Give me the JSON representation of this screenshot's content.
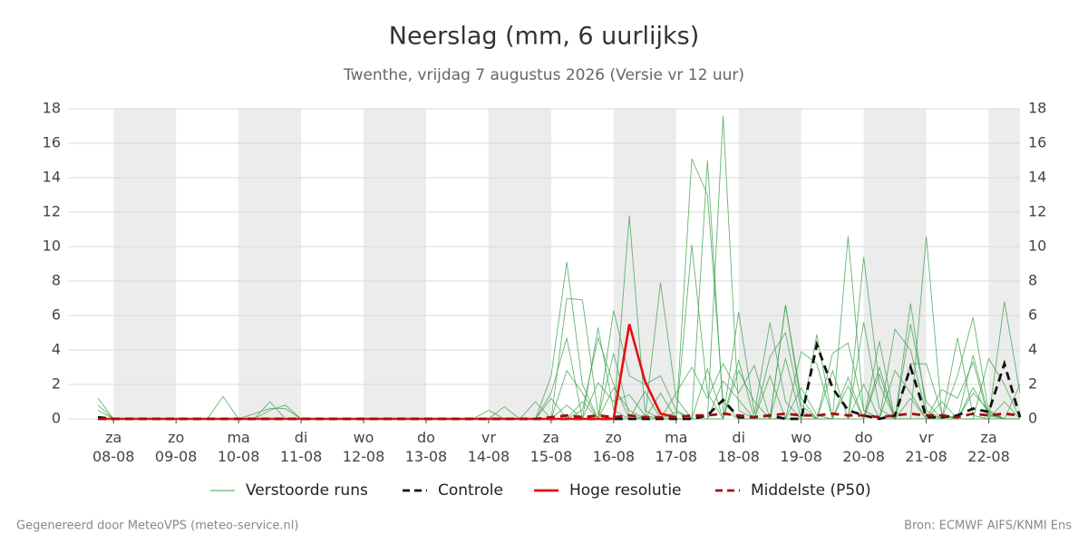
{
  "chart_data": {
    "type": "line",
    "title": "Neerslag (mm, 6 uurlijks)",
    "subtitle": "Twenthe, vrijdag  7 augustus 2026 (Versie vr 12 uur)",
    "footer_left": "Gegenereerd door MeteoVPS (meteo-service.nl)",
    "footer_right": "Bron: ECMWF AIFS/KNMI Ens",
    "categories": [
      null,
      "za 08-08",
      null,
      null,
      null,
      "zo 09-08",
      null,
      null,
      null,
      "ma 10-08",
      null,
      null,
      null,
      "di 11-08",
      null,
      null,
      null,
      "wo 12-08",
      null,
      null,
      null,
      "do 13-08",
      null,
      null,
      null,
      "vr 14-08",
      null,
      null,
      null,
      "za 15-08",
      null,
      null,
      null,
      "zo 16-08",
      null,
      null,
      null,
      "ma 17-08",
      null,
      null,
      null,
      "di 18-08",
      null,
      null,
      null,
      "wo 19-08",
      null,
      null,
      null,
      "do 20-08",
      null,
      null,
      null,
      "vr 21-08",
      null,
      null,
      null,
      "za 22-08",
      null,
      null
    ],
    "ylim": [
      0,
      18
    ],
    "yticks": [
      0,
      2,
      4,
      6,
      8,
      10,
      12,
      14,
      16,
      18
    ],
    "grid": true,
    "ensemble": {
      "name": "Verstoorde runs",
      "color": "#3fa34d",
      "members": [
        [
          1.2,
          0,
          0,
          0,
          0,
          0,
          0,
          0,
          1.3,
          0,
          0,
          0,
          0,
          0,
          0,
          0,
          0,
          0,
          0,
          0,
          0,
          0,
          0,
          0,
          0,
          0,
          0,
          0,
          0,
          2.5,
          9.1,
          2.0,
          0,
          0,
          11.8,
          0.5,
          0,
          0,
          15.1,
          13.0,
          1.0,
          0,
          0,
          0,
          0,
          0,
          4.9,
          0,
          10.6,
          0.5,
          0,
          0,
          0,
          10.6,
          0.2,
          0,
          0,
          0,
          6.8,
          1.5
        ],
        [
          0.8,
          0,
          0,
          0,
          0,
          0,
          0,
          0,
          0,
          0,
          0,
          1.0,
          0,
          0,
          0,
          0,
          0,
          0,
          0,
          0,
          0,
          0,
          0,
          0,
          0,
          0,
          0,
          0,
          0,
          0,
          7.0,
          6.9,
          0.3,
          0,
          0,
          0,
          7.9,
          1.2,
          0,
          0,
          17.6,
          0.5,
          0,
          0,
          6.6,
          0.8,
          0,
          0,
          0,
          9.4,
          2.0,
          0,
          0,
          0,
          0,
          2.5,
          5.9,
          0.4,
          0,
          2.0
        ],
        [
          0.5,
          0,
          0,
          0,
          0,
          0,
          0,
          0,
          0,
          0,
          0,
          0.5,
          0.8,
          0,
          0,
          0,
          0,
          0,
          0,
          0,
          0,
          0,
          0,
          0,
          0,
          0,
          0,
          0,
          0,
          1.5,
          4.7,
          0,
          5.3,
          0.5,
          0,
          0,
          0,
          0,
          10.1,
          1.5,
          0,
          6.2,
          0.3,
          5.6,
          1.0,
          0,
          0,
          3.8,
          4.4,
          0.5,
          0,
          5.2,
          4.0,
          0.3,
          0,
          0,
          3.7,
          0.2,
          0,
          0
        ],
        [
          0,
          0,
          0,
          0,
          0,
          0,
          0,
          0,
          0,
          0,
          0,
          0,
          0,
          0,
          0,
          0,
          0,
          0,
          0,
          0,
          0,
          0,
          0,
          0,
          0,
          0,
          0,
          0,
          0,
          0,
          0,
          0,
          0,
          6.3,
          2.5,
          2.0,
          2.5,
          0.5,
          0,
          15.0,
          0.5,
          0,
          0,
          3.6,
          5.0,
          0.5,
          0,
          0,
          0,
          5.6,
          0.6,
          0,
          5.5,
          1.0,
          0,
          4.7,
          0.2,
          0,
          0,
          0
        ],
        [
          0,
          0,
          0,
          0,
          0,
          0,
          0,
          0,
          0,
          0,
          0,
          0,
          0,
          0,
          0,
          0,
          0,
          0,
          0,
          0,
          0,
          0,
          0,
          0,
          0,
          0,
          0,
          0,
          1.0,
          0,
          2.8,
          1.5,
          0,
          3.8,
          0.2,
          0,
          0,
          1.5,
          3.0,
          1.2,
          3.2,
          1.5,
          3.1,
          0,
          6.6,
          1.2,
          0,
          0,
          2.4,
          0,
          4.5,
          0,
          3.2,
          3.2,
          0.3,
          0,
          0,
          3.5,
          2.0,
          0
        ],
        [
          0,
          0,
          0,
          0,
          0,
          0,
          0,
          0,
          0,
          0,
          0,
          0,
          0,
          0,
          0,
          0,
          0,
          0,
          0,
          0,
          0,
          0,
          0,
          0,
          0,
          0,
          0.7,
          0,
          0,
          0,
          0.8,
          0,
          2.1,
          1.0,
          1.4,
          0.2,
          0,
          0,
          0,
          0,
          2.2,
          1.1,
          0,
          0,
          3.5,
          0,
          0,
          2.8,
          0,
          0,
          3.0,
          0,
          6.7,
          0.5,
          0,
          0,
          1.8,
          0.3,
          0,
          0
        ],
        [
          0,
          0,
          0,
          0,
          0,
          0,
          0,
          0,
          0,
          0,
          0.3,
          0.6,
          0.6,
          0,
          0,
          0,
          0,
          0,
          0,
          0,
          0,
          0,
          0,
          0,
          0,
          0.5,
          0,
          0,
          0,
          0,
          0,
          1.0,
          0,
          1.8,
          0.5,
          0,
          1.5,
          0,
          0,
          2.9,
          0,
          3.4,
          0,
          2.5,
          0,
          1.8,
          0.2,
          0,
          1.9,
          0,
          2.6,
          0,
          1.2,
          0,
          1.7,
          1.2,
          3.3,
          0,
          1.0,
          0
        ],
        [
          0,
          0,
          0,
          0,
          0,
          0,
          0,
          0,
          0,
          0,
          0,
          0,
          0,
          0,
          0,
          0,
          0,
          0,
          0,
          0,
          0,
          0,
          0,
          0,
          0,
          0,
          0,
          0,
          0,
          1.2,
          0,
          0.5,
          4.7,
          2.0,
          0,
          1.6,
          0,
          0.4,
          0,
          0,
          0,
          2.8,
          1.0,
          0,
          0,
          3.9,
          3.2,
          0,
          0,
          2.0,
          0,
          2.8,
          1.5,
          0,
          1.0,
          0,
          1.5,
          0.5,
          0,
          0
        ]
      ]
    },
    "series": [
      {
        "name": "Controle",
        "color": "#111111",
        "dash": true,
        "values": [
          0.1,
          0,
          0,
          0,
          0,
          0,
          0,
          0,
          0,
          0,
          0,
          0,
          0,
          0,
          0,
          0,
          0,
          0,
          0,
          0,
          0,
          0,
          0,
          0,
          0,
          0,
          0,
          0,
          0,
          0,
          0,
          0,
          0,
          0,
          0,
          0,
          0,
          0,
          0,
          0.2,
          1.1,
          0.1,
          0.1,
          0.2,
          0,
          0,
          4.3,
          1.8,
          0.5,
          0.2,
          0,
          0.2,
          3.0,
          0.1,
          0.1,
          0.2,
          0.6,
          0.4,
          3.2,
          0.1
        ]
      },
      {
        "name": "Hoge resolutie",
        "color": "#e0120f",
        "dash": false,
        "values": [
          0,
          0,
          0,
          0,
          0,
          0,
          0,
          0,
          0,
          0,
          0,
          0,
          0,
          0,
          0,
          0,
          0,
          0,
          0,
          0,
          0,
          0,
          0,
          0,
          0,
          0,
          0,
          0,
          0,
          0,
          0,
          0,
          0,
          0,
          5.5,
          2.2,
          0.3,
          0.1,
          null,
          null,
          null,
          null,
          null,
          null,
          null,
          null,
          null,
          null,
          null,
          null,
          null,
          null,
          null,
          null,
          null,
          null,
          null,
          null,
          null,
          null
        ]
      },
      {
        "name": "Middelste (P50)",
        "color": "#a01010",
        "dash": true,
        "values": [
          0,
          0,
          0,
          0,
          0,
          0,
          0,
          0,
          0,
          0,
          0,
          0,
          0,
          0,
          0,
          0,
          0,
          0,
          0,
          0,
          0,
          0,
          0,
          0,
          0,
          0,
          0,
          0,
          0,
          0.1,
          0.2,
          0.1,
          0.2,
          0.1,
          0.2,
          0.1,
          0.1,
          0.1,
          0.2,
          0.2,
          0.3,
          0.2,
          0.1,
          0.2,
          0.3,
          0.2,
          0.2,
          0.3,
          0.2,
          0.2,
          0.1,
          0.2,
          0.3,
          0.2,
          0.2,
          0.1,
          0.3,
          0.2,
          0.3,
          0.2
        ]
      }
    ]
  }
}
